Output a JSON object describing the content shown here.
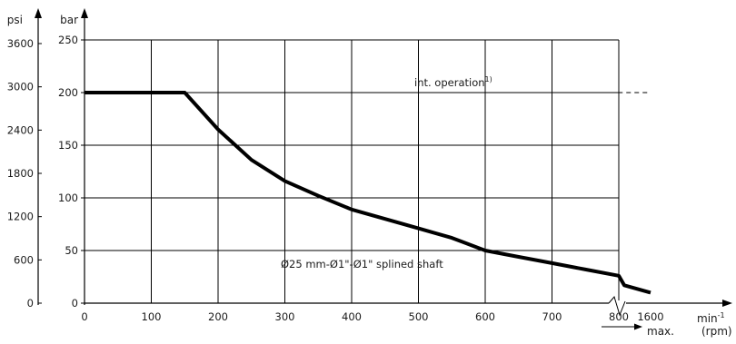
{
  "chart_data": {
    "type": "line",
    "title": "",
    "y_left_unit": "psi",
    "y_left_ticks": [
      "0",
      "600",
      "1200",
      "1800",
      "2400",
      "3000",
      "3600"
    ],
    "y_unit": "bar",
    "y_ticks": [
      0,
      50,
      100,
      150,
      200,
      250
    ],
    "ylim": [
      0,
      250
    ],
    "x_unit": "min",
    "x_unit_sup": "-1",
    "x_unit_sub": "(rpm)",
    "x_ticks": [
      0,
      100,
      200,
      300,
      400,
      500,
      600,
      700,
      800,
      1600
    ],
    "x_tick_labels": [
      "0",
      "100",
      "200",
      "300",
      "400",
      "500",
      "600",
      "700",
      "800",
      "1600"
    ],
    "x_max_label": "max.",
    "grid": true,
    "series": [
      {
        "name": "",
        "x": [
          0,
          150,
          200,
          250,
          300,
          350,
          400,
          450,
          500,
          550,
          600,
          650,
          700,
          750,
          800,
          850,
          1600
        ],
        "y": [
          200,
          200,
          165,
          136,
          116,
          102,
          89,
          80,
          71,
          62,
          50,
          44,
          38,
          32,
          26,
          17,
          10
        ]
      }
    ],
    "reference_line": {
      "y": 200,
      "style": "dashed",
      "x_from": 150,
      "x_to": 1600
    },
    "annotations": {
      "int_operation": "int. operation",
      "int_operation_sup": "1)",
      "shaft": "Ø25 mm-Ø1\"-Ø1\" splined shaft"
    }
  }
}
